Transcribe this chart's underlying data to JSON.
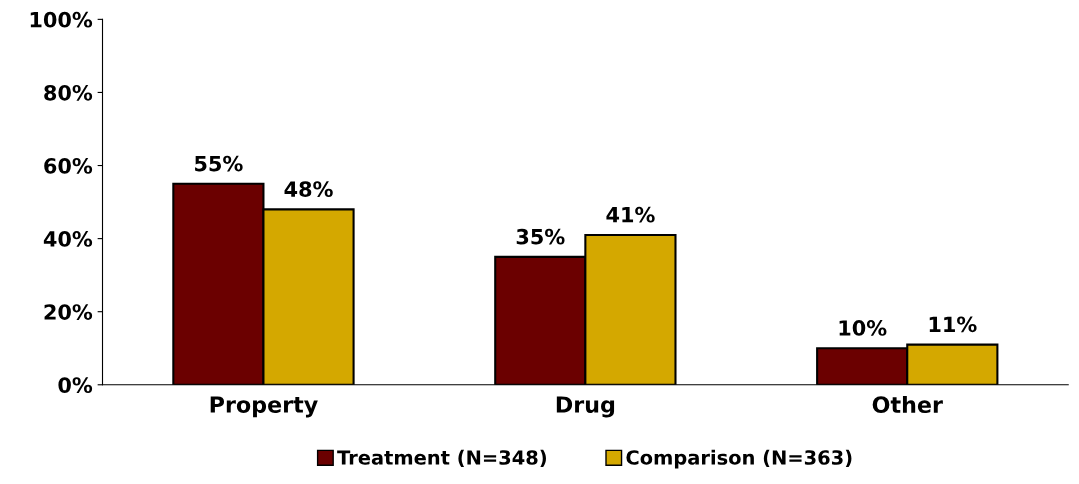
{
  "chart_data": {
    "type": "bar",
    "categories": [
      "Property",
      "Drug",
      "Other"
    ],
    "series": [
      {
        "name": "Treatment (N=348)",
        "color": "#6b0000",
        "values": [
          55,
          35,
          10
        ],
        "value_labels": [
          "55%",
          "35%",
          "10%"
        ]
      },
      {
        "name": "Comparison (N=363)",
        "color": "#d4a800",
        "values": [
          48,
          41,
          11
        ],
        "value_labels": [
          "48%",
          "41%",
          "11%"
        ]
      }
    ],
    "ylim": [
      0,
      100
    ],
    "yticks": [
      {
        "value": 0,
        "label": "0%"
      },
      {
        "value": 20,
        "label": "20%"
      },
      {
        "value": 40,
        "label": "40%"
      },
      {
        "value": 60,
        "label": "60%"
      },
      {
        "value": 80,
        "label": "80%"
      },
      {
        "value": 100,
        "label": "100%"
      }
    ],
    "grid": false,
    "legend": "bottom"
  }
}
